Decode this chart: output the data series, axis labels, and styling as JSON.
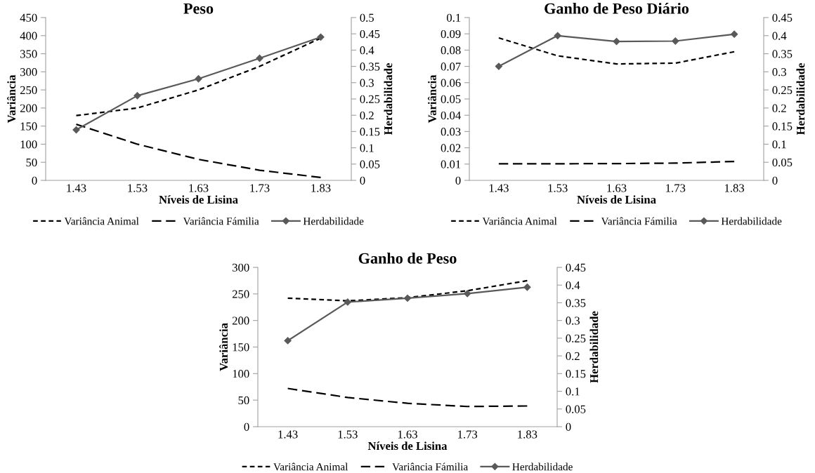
{
  "chart_data": [
    {
      "type": "line",
      "title": "Peso",
      "xlabel": "Níveis de Lisina",
      "ylabel": "Variância",
      "y2label": "Herdabilidade",
      "categories": [
        "1.43",
        "1.53",
        "1.63",
        "1.73",
        "1.83"
      ],
      "ylim": [
        0,
        450
      ],
      "yticks": [
        0,
        50,
        100,
        150,
        200,
        250,
        300,
        350,
        400,
        450
      ],
      "y2lim": [
        0,
        0.5
      ],
      "y2ticks": [
        0,
        0.05,
        0.1,
        0.15,
        0.2,
        0.25,
        0.3,
        0.35,
        0.4,
        0.45,
        0.5
      ],
      "grid": false,
      "legend": "bottom",
      "series": [
        {
          "name": "Variância Animal",
          "color": "#000000",
          "line_style": "dotted",
          "marker": "none",
          "values": [
            179,
            200,
            250,
            315,
            393
          ]
        },
        {
          "name": "Variância Fámilia",
          "color": "#000000",
          "line_style": "dashed",
          "marker": "none",
          "values": [
            155,
            100,
            58,
            28,
            8
          ]
        },
        {
          "name": "Herdabilidade",
          "color": "#595959",
          "line_style": "solid",
          "marker": "diamond",
          "axis": "y2",
          "values": [
            0.155,
            0.26,
            0.312,
            0.375,
            0.44
          ]
        }
      ]
    },
    {
      "type": "line",
      "title": "Ganho de Peso Diário",
      "xlabel": "Níveis de Lisina",
      "ylabel": "Variância",
      "y2label": "Herdabilidade",
      "categories": [
        "1.43",
        "1.53",
        "1.63",
        "1.73",
        "1.83"
      ],
      "ylim": [
        0,
        0.1
      ],
      "yticks": [
        0,
        0.01,
        0.02,
        0.03,
        0.04,
        0.05,
        0.06,
        0.07,
        0.08,
        0.09,
        0.1
      ],
      "y2lim": [
        0,
        0.45
      ],
      "y2ticks": [
        0,
        0.05,
        0.1,
        0.15,
        0.2,
        0.25,
        0.3,
        0.35,
        0.4,
        0.45
      ],
      "grid": false,
      "legend": "bottom",
      "series": [
        {
          "name": "Variância Animal",
          "color": "#000000",
          "line_style": "dotted",
          "marker": "none",
          "values": [
            0.0875,
            0.0765,
            0.0715,
            0.072,
            0.079
          ]
        },
        {
          "name": "Variância Fámilia",
          "color": "#000000",
          "line_style": "dashed",
          "marker": "none",
          "values": [
            0.0102,
            0.0102,
            0.0103,
            0.0106,
            0.0116
          ]
        },
        {
          "name": "Herdabilidade",
          "color": "#595959",
          "line_style": "solid",
          "marker": "diamond",
          "axis": "y2",
          "values": [
            0.315,
            0.4,
            0.384,
            0.385,
            0.404
          ]
        }
      ]
    },
    {
      "type": "line",
      "title": "Ganho de Peso",
      "xlabel": "Níveis de Lisina",
      "ylabel": "Variância",
      "y2label": "Herdabilidade",
      "categories": [
        "1.43",
        "1.53",
        "1.63",
        "1.73",
        "1.83"
      ],
      "ylim": [
        0,
        300
      ],
      "yticks": [
        0,
        50,
        100,
        150,
        200,
        250,
        300
      ],
      "y2lim": [
        0,
        0.45
      ],
      "y2ticks": [
        0,
        0.05,
        0.1,
        0.15,
        0.2,
        0.25,
        0.3,
        0.35,
        0.4,
        0.45
      ],
      "grid": false,
      "legend": "bottom",
      "series": [
        {
          "name": "Variância Animal",
          "color": "#000000",
          "line_style": "dotted",
          "marker": "none",
          "values": [
            242,
            237,
            243,
            256,
            275
          ]
        },
        {
          "name": "Variância Fámilia",
          "color": "#000000",
          "line_style": "dashed",
          "marker": "none",
          "values": [
            72,
            55,
            44,
            38,
            39
          ]
        },
        {
          "name": "Herdabilidade",
          "color": "#595959",
          "line_style": "solid",
          "marker": "diamond",
          "axis": "y2",
          "values": [
            0.243,
            0.352,
            0.363,
            0.376,
            0.394
          ]
        }
      ]
    }
  ]
}
